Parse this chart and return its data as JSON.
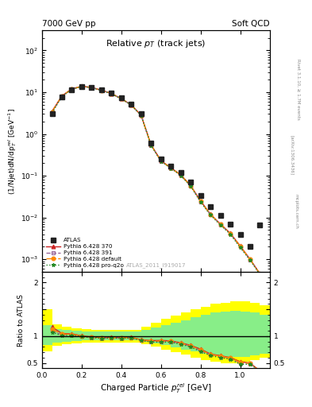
{
  "title_left": "7000 GeV pp",
  "title_right": "Soft QCD",
  "plot_title": "Relative p_{T} (track jets)",
  "xlabel": "Charged Particle p_{T}^{rel} [GeV]",
  "ylabel": "(1/Njet)dN/dp_{T}^{rel} [GeV^{-1}]",
  "ylabel_ratio": "Ratio to ATLAS",
  "watermark": "ATLAS_2011_I919017",
  "x_atlas": [
    0.05,
    0.1,
    0.15,
    0.2,
    0.25,
    0.3,
    0.35,
    0.4,
    0.45,
    0.5,
    0.55,
    0.6,
    0.65,
    0.7,
    0.75,
    0.8,
    0.85,
    0.9,
    0.95,
    1.0,
    1.05,
    1.1
  ],
  "y_atlas": [
    3.0,
    7.8,
    11.5,
    13.8,
    13.2,
    11.5,
    9.5,
    7.2,
    5.1,
    3.0,
    0.6,
    0.25,
    0.17,
    0.12,
    0.07,
    0.033,
    0.018,
    0.011,
    0.007,
    0.004,
    0.002,
    0.0065
  ],
  "x_mc": [
    0.05,
    0.1,
    0.15,
    0.2,
    0.25,
    0.3,
    0.35,
    0.4,
    0.45,
    0.5,
    0.55,
    0.6,
    0.65,
    0.7,
    0.75,
    0.8,
    0.85,
    0.9,
    0.95,
    1.0,
    1.05,
    1.1
  ],
  "y_py370": [
    3.5,
    8.2,
    12.0,
    13.9,
    13.0,
    11.2,
    9.3,
    7.0,
    5.0,
    2.8,
    0.55,
    0.23,
    0.155,
    0.105,
    0.058,
    0.025,
    0.012,
    0.007,
    0.0042,
    0.0021,
    0.001,
    0.00045
  ],
  "y_py391": [
    3.3,
    8.0,
    11.8,
    13.8,
    12.9,
    11.1,
    9.2,
    6.95,
    4.95,
    2.78,
    0.54,
    0.225,
    0.153,
    0.103,
    0.057,
    0.024,
    0.0118,
    0.0068,
    0.0041,
    0.002,
    0.00098,
    0.00044
  ],
  "y_pydef": [
    3.4,
    8.1,
    11.9,
    13.85,
    12.95,
    11.15,
    9.25,
    6.97,
    4.97,
    2.79,
    0.545,
    0.227,
    0.154,
    0.104,
    0.0575,
    0.0245,
    0.0119,
    0.0069,
    0.00415,
    0.00205,
    0.00099,
    0.00044
  ],
  "y_pyq2o": [
    3.2,
    7.9,
    11.7,
    13.7,
    12.85,
    11.05,
    9.15,
    6.92,
    4.92,
    2.76,
    0.535,
    0.222,
    0.151,
    0.102,
    0.056,
    0.0235,
    0.0115,
    0.0066,
    0.004,
    0.0019,
    0.00095,
    0.00043
  ],
  "color_atlas": "#222222",
  "color_py370": "#cc2222",
  "color_py391": "#996699",
  "color_pydef": "#ff8800",
  "color_pyq2o": "#228822",
  "band_x_edges": [
    0.0,
    0.05,
    0.1,
    0.15,
    0.2,
    0.25,
    0.3,
    0.35,
    0.4,
    0.45,
    0.5,
    0.55,
    0.6,
    0.65,
    0.7,
    0.75,
    0.8,
    0.85,
    0.9,
    0.95,
    1.0,
    1.05,
    1.1,
    1.15
  ],
  "band_yellow_lo": [
    0.72,
    0.82,
    0.85,
    0.87,
    0.88,
    0.88,
    0.88,
    0.88,
    0.88,
    0.88,
    0.85,
    0.8,
    0.75,
    0.7,
    0.65,
    0.6,
    0.55,
    0.52,
    0.5,
    0.5,
    0.52,
    0.55,
    0.6
  ],
  "band_yellow_hi": [
    1.5,
    1.22,
    1.18,
    1.15,
    1.13,
    1.12,
    1.12,
    1.12,
    1.12,
    1.12,
    1.18,
    1.25,
    1.32,
    1.38,
    1.44,
    1.5,
    1.55,
    1.6,
    1.62,
    1.65,
    1.65,
    1.62,
    1.58
  ],
  "band_green_lo": [
    0.83,
    0.88,
    0.9,
    0.91,
    0.92,
    0.92,
    0.92,
    0.92,
    0.92,
    0.92,
    0.9,
    0.87,
    0.83,
    0.79,
    0.75,
    0.71,
    0.67,
    0.64,
    0.62,
    0.61,
    0.62,
    0.64,
    0.67
  ],
  "band_green_hi": [
    1.2,
    1.13,
    1.11,
    1.1,
    1.09,
    1.09,
    1.09,
    1.09,
    1.09,
    1.09,
    1.12,
    1.16,
    1.2,
    1.25,
    1.3,
    1.35,
    1.4,
    1.44,
    1.46,
    1.47,
    1.46,
    1.44,
    1.4
  ],
  "ratio_py370": [
    1.17,
    1.05,
    1.043,
    1.007,
    0.985,
    0.974,
    0.979,
    0.972,
    0.98,
    0.933,
    0.917,
    0.92,
    0.912,
    0.875,
    0.829,
    0.758,
    0.667,
    0.636,
    0.6,
    0.525,
    0.5,
    0.069
  ],
  "ratio_py391": [
    1.1,
    1.026,
    1.026,
    1.0,
    0.977,
    0.965,
    0.968,
    0.965,
    0.971,
    0.927,
    0.9,
    0.9,
    0.9,
    0.858,
    0.814,
    0.727,
    0.656,
    0.618,
    0.586,
    0.5,
    0.49,
    0.068
  ],
  "ratio_pydef": [
    1.13,
    1.038,
    1.035,
    1.004,
    0.981,
    0.97,
    0.974,
    0.968,
    0.976,
    0.93,
    0.908,
    0.908,
    0.906,
    0.867,
    0.821,
    0.742,
    0.661,
    0.627,
    0.593,
    0.513,
    0.495,
    0.068
  ],
  "ratio_pyq2o": [
    1.07,
    1.013,
    1.017,
    0.993,
    0.973,
    0.961,
    0.963,
    0.961,
    0.965,
    0.92,
    0.892,
    0.888,
    0.888,
    0.85,
    0.8,
    0.712,
    0.639,
    0.6,
    0.571,
    0.475,
    0.475,
    0.066
  ],
  "xlim": [
    0.0,
    1.15
  ],
  "ylim_main": [
    0.0005,
    300
  ],
  "ylim_ratio": [
    0.4,
    2.2
  ],
  "ratio_yticks": [
    0.5,
    1.0,
    1.5,
    2.0
  ],
  "ratio_yticklabels": [
    "0.5",
    "1",
    "",
    "2"
  ]
}
